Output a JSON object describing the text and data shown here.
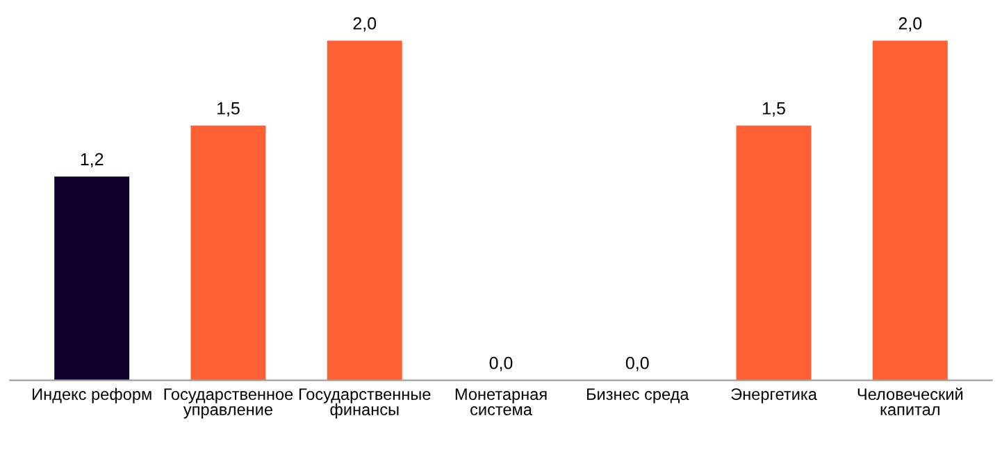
{
  "chart_data": {
    "type": "bar",
    "categories": [
      "Индекс реформ",
      "Государственное\nуправление",
      "Государственные\nфинансы",
      "Монетарная\nсистема",
      "Бизнес среда",
      "Энергетика",
      "Человеческий\nкапитал"
    ],
    "values": [
      1.2,
      1.5,
      2.0,
      0.0,
      0.0,
      1.5,
      2.0
    ],
    "value_labels": [
      "1,2",
      "1,5",
      "2,0",
      "0,0",
      "0,0",
      "1,5",
      "2,0"
    ],
    "colors": [
      "#10002b",
      "#ff6033",
      "#ff6033",
      "#ff6033",
      "#ff6033",
      "#ff6033",
      "#ff6033"
    ],
    "grid": false,
    "legend": false
  }
}
